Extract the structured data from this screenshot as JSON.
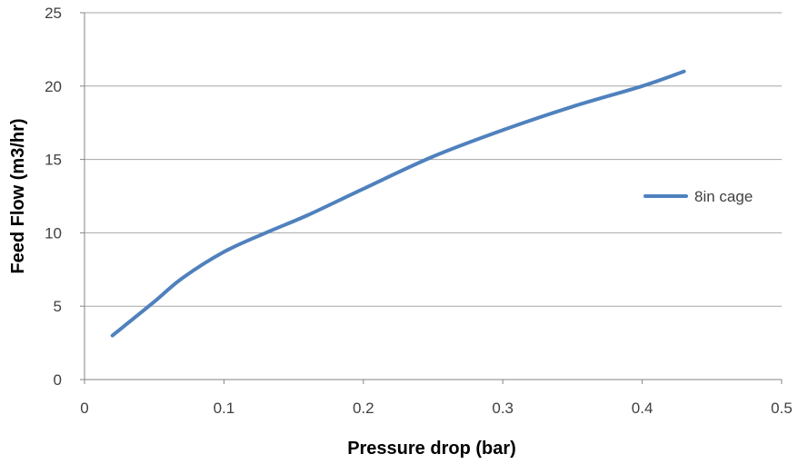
{
  "chart_data": {
    "type": "line",
    "xlabel": "Pressure drop (bar)",
    "ylabel": "Feed Flow (m3/hr)",
    "xlim": [
      0,
      0.5
    ],
    "ylim": [
      0,
      25
    ],
    "x_ticks": [
      "0",
      "0.1",
      "0.2",
      "0.3",
      "0.4",
      "0.5"
    ],
    "y_ticks": [
      "0",
      "5",
      "10",
      "15",
      "20",
      "25"
    ],
    "grid": "horizontal",
    "legend": "right",
    "series": [
      {
        "name": "8in cage",
        "color": "#4f81bd",
        "x": [
          0.02,
          0.05,
          0.07,
          0.1,
          0.13,
          0.16,
          0.2,
          0.25,
          0.3,
          0.35,
          0.4,
          0.43
        ],
        "y": [
          3.0,
          5.3,
          6.9,
          8.7,
          10.0,
          11.2,
          13.0,
          15.2,
          17.0,
          18.6,
          20.0,
          21.0
        ]
      }
    ]
  }
}
